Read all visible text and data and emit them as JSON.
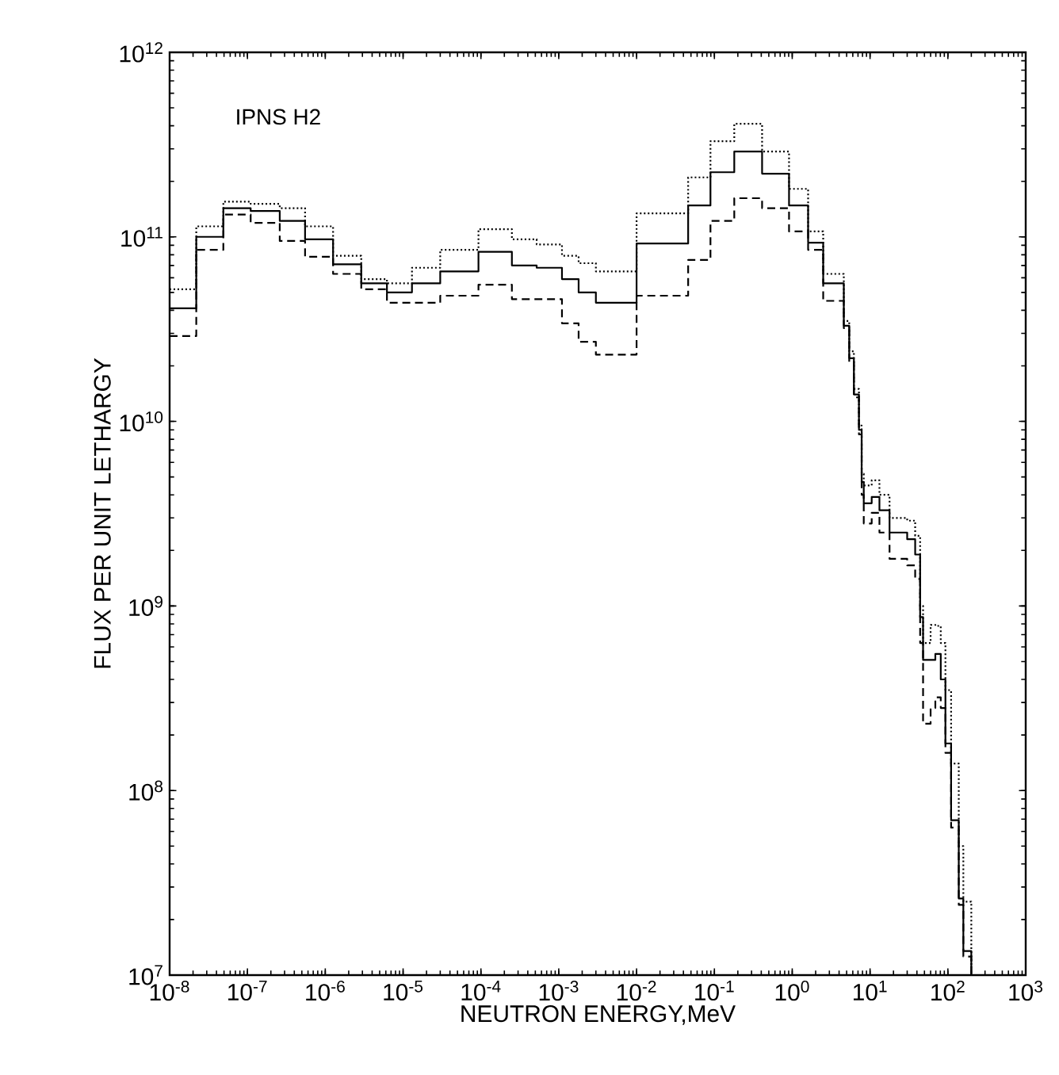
{
  "chart_data": {
    "type": "step",
    "xlabel": "NEUTRON ENERGY,MeV",
    "ylabel": "FLUX PER UNIT LETHARGY",
    "annotations": [
      "IPNS H2"
    ],
    "log": "xy",
    "xlim": [
      1e-08,
      1000
    ],
    "ylim": [
      10000000.0,
      1000000000000.0
    ],
    "xticks": [
      {
        "value": 1e-08,
        "label": "10$^{-8}$"
      },
      {
        "value": 1e-07,
        "label": "10$^{-7}$"
      },
      {
        "value": 1e-06,
        "label": "10$^{-6}$"
      },
      {
        "value": 1e-05,
        "label": "10$^{-5}$"
      },
      {
        "value": 0.0001,
        "label": "10$^{-4}$"
      },
      {
        "value": 0.001,
        "label": "10$^{-3}$"
      },
      {
        "value": 0.01,
        "label": "10$^{-2}$"
      },
      {
        "value": 0.1,
        "label": "10$^{-1}$"
      },
      {
        "value": 1,
        "label": "10$^{0}$"
      },
      {
        "value": 10,
        "label": "10$^{1}$"
      },
      {
        "value": 100,
        "label": "10$^{2}$"
      },
      {
        "value": 1000,
        "label": "10$^{3}$"
      }
    ],
    "yticks": [
      {
        "value": 10000000.0,
        "label": "10$^{7}$"
      },
      {
        "value": 100000000.0,
        "label": "10$^{8}$"
      },
      {
        "value": 1000000000.0,
        "label": "10$^{9}$"
      },
      {
        "value": 10000000000.0,
        "label": "10$^{10}$"
      },
      {
        "value": 100000000000.0,
        "label": "10$^{11}$"
      },
      {
        "value": 1000000000000.0,
        "label": "10$^{12}$"
      }
    ],
    "x": [
      1e-08,
      2.2e-08,
      4.9e-08,
      1.1e-07,
      2.6e-07,
      5.5e-07,
      1.26e-06,
      2.9e-06,
      6.2e-06,
      1.3e-05,
      3e-05,
      9.3e-05,
      0.00025,
      0.00052,
      0.0011,
      0.0018,
      0.003,
      0.01,
      0.046,
      0.089,
      0.18,
      0.41,
      0.91,
      1.6,
      2.5,
      4.6,
      5.4,
      6.2,
      7.2,
      7.8,
      8.3,
      10.5,
      13.2,
      17.8,
      30,
      38,
      44,
      48,
      60,
      69,
      81,
      93,
      110,
      138,
      158,
      200
    ],
    "series": [
      {
        "color": "#000000",
        "line_style": "solid",
        "values": [
          41000000000.0,
          100000000000.0,
          143000000000.0,
          138000000000.0,
          122000000000.0,
          97000000000.0,
          71000000000.0,
          56000000000.0,
          50000000000.0,
          56000000000.0,
          65000000000.0,
          83000000000.0,
          70000000000.0,
          68000000000.0,
          59000000000.0,
          50000000000.0,
          44000000000.0,
          92000000000.0,
          148000000000.0,
          224000000000.0,
          290000000000.0,
          220000000000.0,
          148000000000.0,
          93000000000.0,
          56000000000.0,
          33000000000.0,
          22000000000.0,
          14000000000.0,
          9000000000.0,
          4700000000.0,
          3600000000.0,
          3900000000.0,
          3300000000.0,
          2500000000.0,
          2300000000.0,
          1900000000.0,
          870000000.0,
          510000000.0,
          510000000.0,
          550000000.0,
          400000000.0,
          180000000.0,
          69000000.0,
          26000000.0,
          13500000.0,
          10000000.0
        ]
      },
      {
        "color": "#000000",
        "line_style": "dashed",
        "values": [
          29000000000.0,
          85000000000.0,
          132000000000.0,
          119000000000.0,
          95000000000.0,
          78000000000.0,
          63000000000.0,
          52000000000.0,
          44000000000.0,
          44000000000.0,
          48000000000.0,
          55000000000.0,
          46000000000.0,
          46000000000.0,
          34000000000.0,
          27000000000.0,
          23000000000.0,
          48000000000.0,
          75000000000.0,
          122000000000.0,
          162000000000.0,
          143000000000.0,
          107000000000.0,
          85000000000.0,
          45000000000.0,
          32000000000.0,
          21000000000.0,
          13500000000.0,
          8500000000.0,
          4000000000.0,
          2800000000.0,
          3200000000.0,
          2500000000.0,
          1800000000.0,
          1660000000.0,
          1400000000.0,
          630000000.0,
          230000000.0,
          280000000.0,
          320000000.0,
          280000000.0,
          160000000.0,
          63000000.0,
          24000000.0,
          12600000.0,
          10000000.0
        ]
      },
      {
        "color": "#000000",
        "line_style": "dotted",
        "values": [
          52000000000.0,
          114000000000.0,
          155000000000.0,
          151000000000.0,
          143000000000.0,
          114000000000.0,
          79000000000.0,
          59000000000.0,
          56000000000.0,
          68000000000.0,
          85000000000.0,
          110000000000.0,
          97000000000.0,
          91000000000.0,
          79000000000.0,
          72000000000.0,
          65000000000.0,
          134000000000.0,
          210000000000.0,
          330000000000.0,
          410000000000.0,
          290000000000.0,
          182000000000.0,
          107000000000.0,
          63000000000.0,
          35000000000.0,
          24000000000.0,
          15000000000.0,
          9500000000.0,
          5200000000.0,
          4500000000.0,
          4800000000.0,
          4000000000.0,
          3000000000.0,
          2900000000.0,
          2400000000.0,
          1000000000.0,
          630000000.0,
          790000000.0,
          780000000.0,
          630000000.0,
          350000000.0,
          140000000.0,
          50000000.0,
          25000000.0,
          11000000.0
        ]
      }
    ]
  }
}
